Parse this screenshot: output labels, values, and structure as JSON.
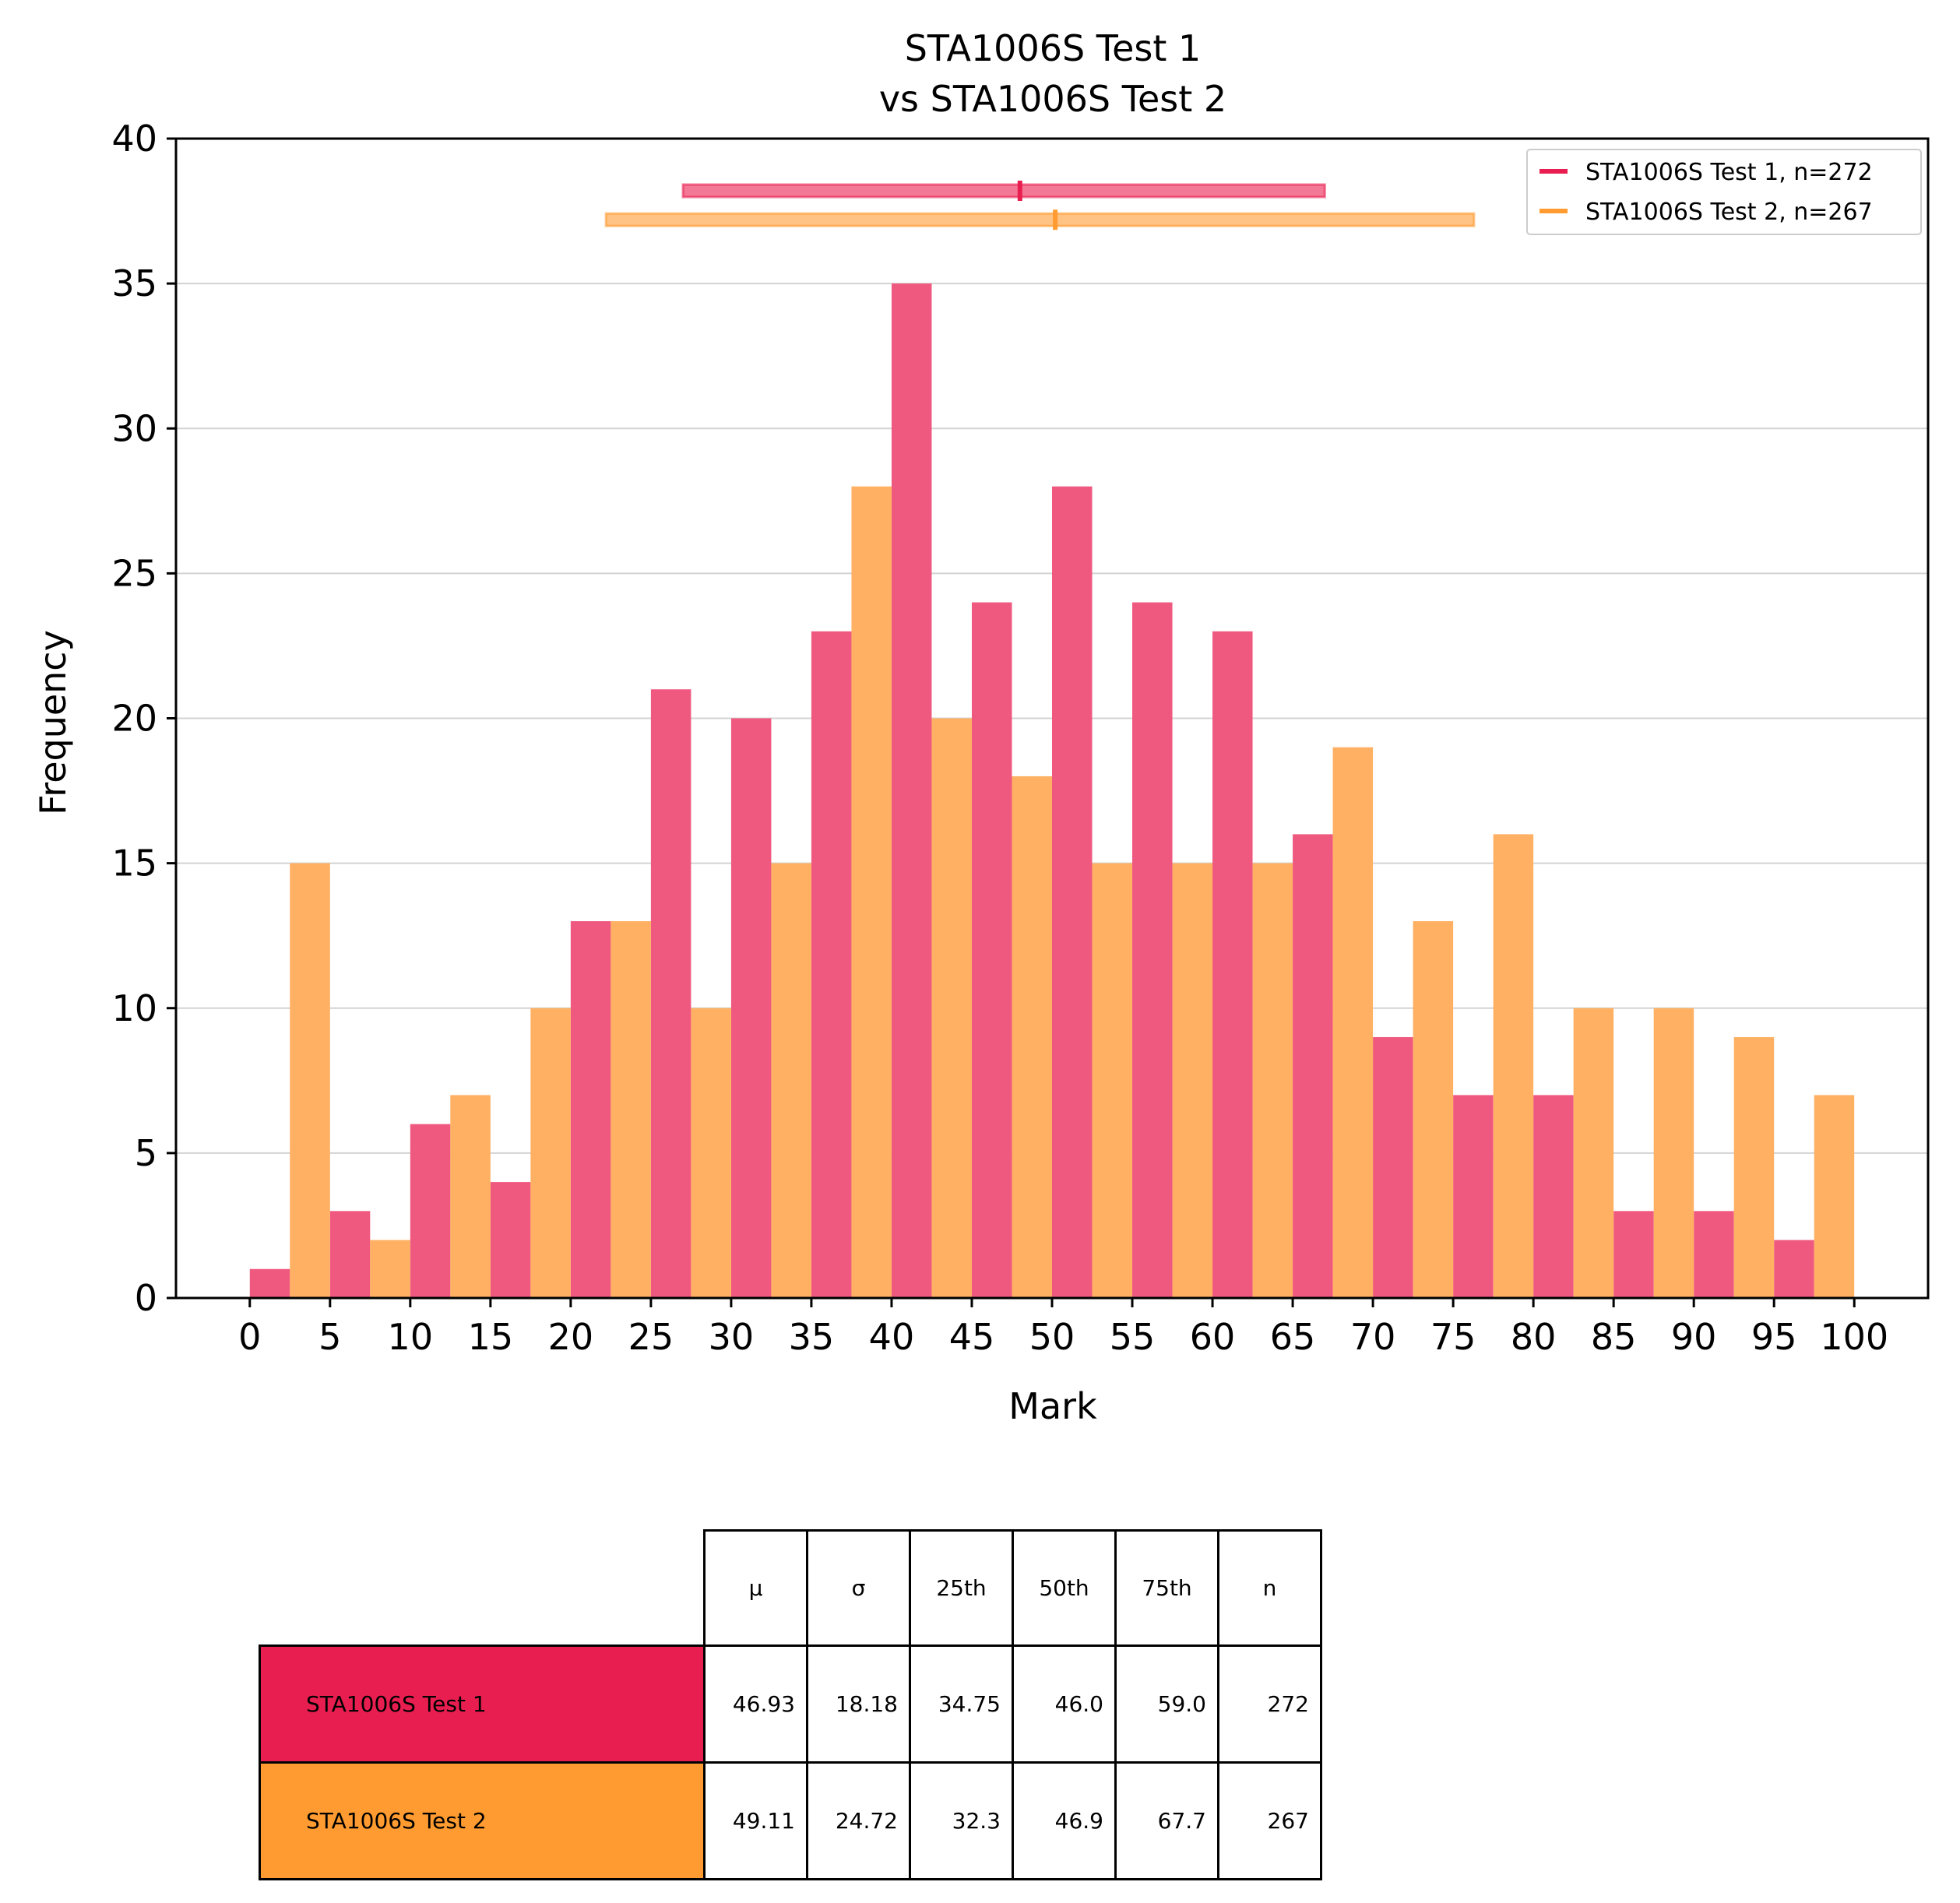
{
  "colors": {
    "test1": "#e91e50",
    "test2": "#ff9b30",
    "test1_bar": "#f0597f",
    "test2_bar": "#ffb063",
    "grid": "#d3d3d3"
  },
  "chart_data": {
    "type": "bar",
    "title": [
      "STA1006S Test 1",
      "vs STA1006S Test 2"
    ],
    "xlabel": "Mark",
    "ylabel": "Frequency",
    "xlim": [
      -4.6,
      104.6
    ],
    "ylim": [
      0,
      40
    ],
    "xticks": [
      0,
      5,
      10,
      15,
      20,
      25,
      30,
      35,
      40,
      45,
      50,
      55,
      60,
      65,
      70,
      75,
      80,
      85,
      90,
      95,
      100
    ],
    "yticks": [
      0,
      5,
      10,
      15,
      20,
      25,
      30,
      35,
      40
    ],
    "grid": "horizontal",
    "bin_edges": [
      0,
      5,
      10,
      15,
      20,
      25,
      30,
      35,
      40,
      45,
      50,
      55,
      60,
      65,
      70,
      75,
      80,
      85,
      90,
      95,
      100
    ],
    "series": [
      {
        "name": "STA1006S Test 1, n=272",
        "color_key": "test1",
        "values": [
          1,
          3,
          6,
          4,
          13,
          21,
          20,
          23,
          35,
          24,
          28,
          24,
          23,
          16,
          9,
          7,
          7,
          3,
          3,
          2
        ],
        "interval": {
          "low": 27,
          "center": 48,
          "high": 67,
          "y": 38.2
        }
      },
      {
        "name": "STA1006S Test 2, n=267",
        "color_key": "test2",
        "values": [
          15,
          2,
          7,
          10,
          13,
          10,
          15,
          28,
          20,
          18,
          15,
          15,
          15,
          19,
          13,
          16,
          10,
          10,
          9,
          7
        ],
        "interval": {
          "low": 22.2,
          "center": 50.2,
          "high": 76.3,
          "y": 37.2
        }
      }
    ],
    "legend": {
      "placement": "top-right"
    }
  },
  "table": {
    "headers": [
      "μ",
      "σ",
      "25th",
      "50th",
      "75th",
      "n"
    ],
    "rows": [
      {
        "label": "STA1006S Test 1",
        "color_key": "test1",
        "values": [
          "46.93",
          "18.18",
          "34.75",
          "46.0",
          "59.0",
          "272"
        ]
      },
      {
        "label": "STA1006S Test 2",
        "color_key": "test2",
        "values": [
          "49.11",
          "24.72",
          "32.3",
          "46.9",
          "67.7",
          "267"
        ]
      }
    ]
  }
}
